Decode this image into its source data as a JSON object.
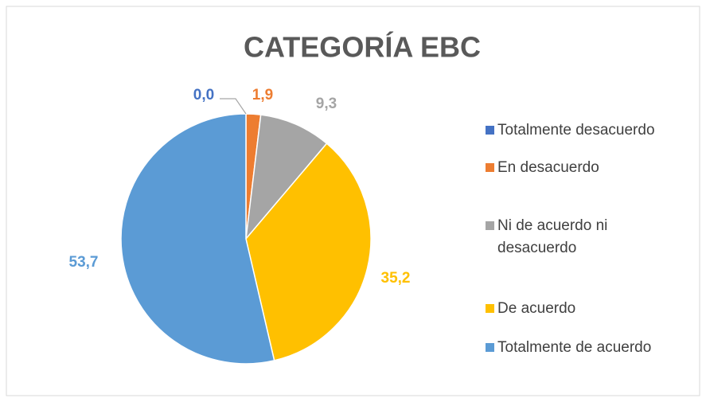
{
  "chart_data": {
    "type": "pie",
    "title": "CATEGORÍA EBC",
    "categories": [
      "Totalmente desacuerdo",
      "En desacuerdo",
      "Ni de acuerdo ni desacuerdo",
      "De acuerdo",
      "Totalmente de acuerdo"
    ],
    "values": [
      0.0,
      1.9,
      9.3,
      35.2,
      53.7
    ],
    "value_labels": [
      "0,0",
      "1,9",
      "9,3",
      "35,2",
      "53,7"
    ],
    "colors": [
      "#4472c4",
      "#ed7d31",
      "#a5a5a5",
      "#ffc000",
      "#5b9bd5"
    ],
    "legend": "right"
  }
}
